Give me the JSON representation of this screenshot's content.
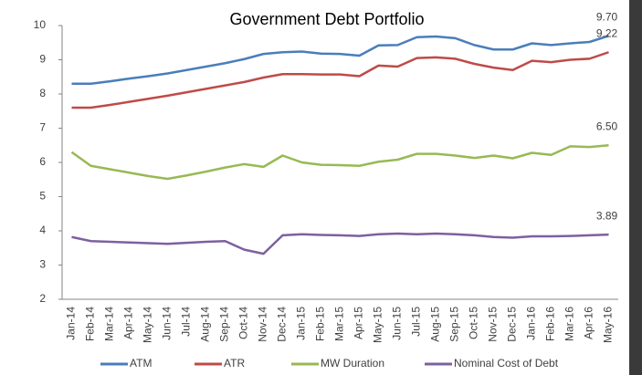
{
  "chart_data": {
    "type": "line",
    "title": "Government Debt Portfolio",
    "categories": [
      "Jan-14",
      "Feb-14",
      "Mar-14",
      "Apr-14",
      "May-14",
      "Jun-14",
      "Jul-14",
      "Aug-14",
      "Sep-14",
      "Oct-14",
      "Nov-14",
      "Dec-14",
      "Jan-15",
      "Feb-15",
      "Mar-15",
      "Apr-15",
      "May-15",
      "Jun-15",
      "Jul-15",
      "Aug-15",
      "Sep-15",
      "Oct-15",
      "Nov-15",
      "Dec-15",
      "Jan-16",
      "Feb-16",
      "Mar-16",
      "Apr-16",
      "May-16"
    ],
    "series": [
      {
        "name": "ATM",
        "color": "#4a7ebb",
        "values": [
          8.3,
          8.3,
          8.37,
          8.45,
          8.52,
          8.6,
          8.7,
          8.8,
          8.9,
          9.02,
          9.17,
          9.22,
          9.24,
          9.18,
          9.17,
          9.12,
          9.42,
          9.43,
          9.66,
          9.68,
          9.63,
          9.43,
          9.3,
          9.3,
          9.48,
          9.43,
          9.48,
          9.52,
          9.7
        ],
        "value_labels": [
          null,
          null,
          null,
          null,
          null,
          null,
          null,
          null,
          null,
          null,
          null,
          null,
          null,
          null,
          null,
          null,
          null,
          null,
          null,
          null,
          null,
          null,
          null,
          null,
          null,
          null,
          null,
          null,
          "9.70"
        ]
      },
      {
        "name": "ATR",
        "color": "#be4b48",
        "values": [
          7.6,
          7.6,
          7.68,
          7.77,
          7.86,
          7.95,
          8.05,
          8.15,
          8.25,
          8.35,
          8.48,
          8.58,
          8.58,
          8.57,
          8.57,
          8.52,
          8.83,
          8.8,
          9.05,
          9.07,
          9.03,
          8.88,
          8.77,
          8.7,
          8.97,
          8.93,
          9.0,
          9.03,
          9.22
        ],
        "value_labels": [
          null,
          null,
          null,
          null,
          null,
          null,
          null,
          null,
          null,
          null,
          null,
          null,
          null,
          null,
          null,
          null,
          null,
          null,
          null,
          null,
          null,
          null,
          null,
          null,
          null,
          null,
          null,
          null,
          "9.22"
        ]
      },
      {
        "name": "MW Duration",
        "color": "#98b954",
        "values": [
          6.3,
          5.9,
          5.8,
          5.7,
          5.6,
          5.52,
          5.62,
          5.73,
          5.85,
          5.95,
          5.87,
          6.2,
          6.0,
          5.93,
          5.92,
          5.9,
          6.02,
          6.08,
          6.25,
          6.25,
          6.2,
          6.13,
          6.2,
          6.12,
          6.28,
          6.22,
          6.47,
          6.45,
          6.5
        ],
        "value_labels": [
          null,
          null,
          null,
          null,
          null,
          null,
          null,
          null,
          null,
          null,
          null,
          null,
          null,
          null,
          null,
          null,
          null,
          null,
          null,
          null,
          null,
          null,
          null,
          null,
          null,
          null,
          null,
          null,
          "6.50"
        ]
      },
      {
        "name": "Nominal Cost of Debt",
        "color": "#7d60a0",
        "values": [
          3.82,
          3.7,
          3.68,
          3.66,
          3.64,
          3.62,
          3.65,
          3.68,
          3.7,
          3.45,
          3.33,
          3.87,
          3.9,
          3.88,
          3.87,
          3.85,
          3.9,
          3.92,
          3.9,
          3.92,
          3.9,
          3.87,
          3.82,
          3.8,
          3.84,
          3.84,
          3.85,
          3.87,
          3.89
        ],
        "value_labels": [
          null,
          null,
          null,
          null,
          null,
          null,
          null,
          null,
          null,
          null,
          null,
          null,
          null,
          null,
          null,
          null,
          null,
          null,
          null,
          null,
          null,
          null,
          null,
          null,
          null,
          null,
          null,
          null,
          "3.89"
        ]
      }
    ],
    "ylim": [
      2,
      10
    ],
    "yticks": [
      2,
      3,
      4,
      5,
      6,
      7,
      8,
      9,
      10
    ],
    "grid": false,
    "legend": "bottom"
  }
}
